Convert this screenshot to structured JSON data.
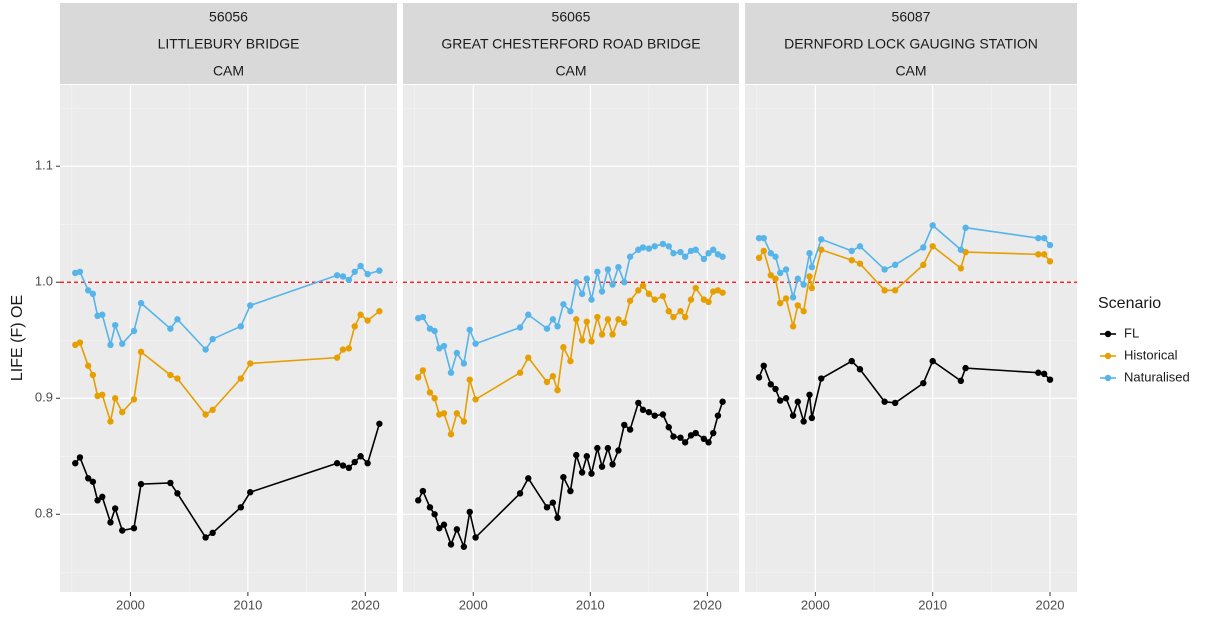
{
  "ylabel": "LIFE (F) OE",
  "legend_title": "Scenario",
  "chart_data": [
    {
      "type": "line",
      "title": [
        "56056",
        "LITTLEBURY BRIDGE",
        "CAM"
      ],
      "x": [
        1995.3,
        1995.7,
        1996.4,
        1996.8,
        1997.2,
        1997.6,
        1998.3,
        1998.7,
        1999.3,
        2000.3,
        2000.9,
        2003.4,
        2004.0,
        2006.4,
        2007.0,
        2009.4,
        2010.2,
        2017.6,
        2018.1,
        2018.6,
        2019.1,
        2019.6,
        2020.2,
        2021.2
      ],
      "series": [
        {
          "name": "FL",
          "color": "#000000",
          "values": [
            0.844,
            0.849,
            0.831,
            0.828,
            0.812,
            0.815,
            0.793,
            0.805,
            0.786,
            0.788,
            0.826,
            0.827,
            0.818,
            0.78,
            0.784,
            0.806,
            0.819,
            0.844,
            0.842,
            0.84,
            0.845,
            0.85,
            0.844,
            0.878
          ]
        },
        {
          "name": "Historical",
          "color": "#E69F00",
          "values": [
            0.946,
            0.948,
            0.928,
            0.92,
            0.902,
            0.903,
            0.88,
            0.9,
            0.888,
            0.899,
            0.94,
            0.92,
            0.917,
            0.886,
            0.89,
            0.917,
            0.93,
            0.935,
            0.942,
            0.943,
            0.962,
            0.972,
            0.967,
            0.975
          ]
        },
        {
          "name": "Naturalised",
          "color": "#56B4E9",
          "values": [
            1.008,
            1.009,
            0.993,
            0.99,
            0.971,
            0.972,
            0.946,
            0.963,
            0.947,
            0.958,
            0.982,
            0.96,
            0.968,
            0.942,
            0.951,
            0.962,
            0.98,
            1.006,
            1.005,
            1.002,
            1.009,
            1.014,
            1.007,
            1.01
          ]
        }
      ],
      "xlim": [
        1994,
        2022.7
      ],
      "ylim": [
        0.733,
        1.17
      ],
      "xticks": [
        2000,
        2010,
        2020
      ],
      "yticks": [
        0.8,
        0.9,
        {
          "value": 1,
          "label": "1.0"
        },
        1.1
      ],
      "hline": 1,
      "hline_color": "#FF0000",
      "grid": true
    },
    {
      "type": "line",
      "title": [
        "56065",
        "GREAT CHESTERFORD ROAD BRIDGE",
        "CAM"
      ],
      "x": [
        1995.3,
        1995.7,
        1996.3,
        1996.7,
        1997.1,
        1997.5,
        1998.1,
        1998.6,
        1999.2,
        1999.7,
        2000.2,
        2004.0,
        2004.7,
        2006.3,
        2006.8,
        2007.2,
        2007.7,
        2008.3,
        2008.8,
        2009.3,
        2009.7,
        2010.1,
        2010.6,
        2011.0,
        2011.5,
        2011.9,
        2012.4,
        2012.9,
        2013.4,
        2014.1,
        2014.5,
        2015.0,
        2015.5,
        2016.2,
        2016.7,
        2017.1,
        2017.7,
        2018.1,
        2018.6,
        2019.0,
        2019.7,
        2020.1,
        2020.5,
        2020.9,
        2021.3
      ],
      "series": [
        {
          "name": "FL",
          "color": "#000000",
          "values": [
            0.812,
            0.82,
            0.806,
            0.8,
            0.788,
            0.791,
            0.774,
            0.787,
            0.772,
            0.802,
            0.78,
            0.818,
            0.831,
            0.806,
            0.81,
            0.797,
            0.832,
            0.82,
            0.851,
            0.836,
            0.85,
            0.835,
            0.857,
            0.841,
            0.857,
            0.843,
            0.855,
            0.877,
            0.873,
            0.896,
            0.89,
            0.888,
            0.885,
            0.886,
            0.875,
            0.867,
            0.866,
            0.862,
            0.868,
            0.87,
            0.865,
            0.862,
            0.87,
            0.885,
            0.897
          ]
        },
        {
          "name": "Historical",
          "color": "#E69F00",
          "values": [
            0.918,
            0.924,
            0.905,
            0.9,
            0.886,
            0.887,
            0.869,
            0.887,
            0.88,
            0.916,
            0.899,
            0.922,
            0.935,
            0.914,
            0.919,
            0.907,
            0.944,
            0.932,
            0.968,
            0.95,
            0.966,
            0.949,
            0.97,
            0.955,
            0.968,
            0.955,
            0.968,
            0.965,
            0.984,
            0.993,
            0.997,
            0.99,
            0.985,
            0.988,
            0.975,
            0.97,
            0.975,
            0.97,
            0.985,
            0.995,
            0.985,
            0.983,
            0.992,
            0.993,
            0.991
          ]
        },
        {
          "name": "Naturalised",
          "color": "#56B4E9",
          "values": [
            0.969,
            0.97,
            0.96,
            0.958,
            0.943,
            0.945,
            0.922,
            0.939,
            0.93,
            0.959,
            0.947,
            0.961,
            0.972,
            0.96,
            0.968,
            0.962,
            0.981,
            0.975,
            1.0,
            0.99,
            1.003,
            0.985,
            1.009,
            0.992,
            1.011,
            0.998,
            1.013,
            1.0,
            1.022,
            1.028,
            1.03,
            1.029,
            1.031,
            1.033,
            1.031,
            1.025,
            1.026,
            1.022,
            1.027,
            1.028,
            1.02,
            1.025,
            1.028,
            1.024,
            1.022
          ]
        }
      ],
      "xlim": [
        1994,
        2022.7
      ],
      "ylim": [
        0.733,
        1.17
      ],
      "xticks": [
        2000,
        2010,
        2020
      ],
      "yticks": [
        0.8,
        0.9,
        {
          "value": 1,
          "label": "1.0"
        },
        1.1
      ],
      "hline": 1,
      "hline_color": "#FF0000",
      "grid": true
    },
    {
      "type": "line",
      "title": [
        "56087",
        "DERNFORD LOCK GAUGING STATION",
        "CAM"
      ],
      "x": [
        1995.2,
        1995.6,
        1996.2,
        1996.6,
        1997.0,
        1997.5,
        1998.1,
        1998.5,
        1999.0,
        1999.5,
        1999.7,
        2000.5,
        2003.1,
        2003.8,
        2005.9,
        2006.8,
        2009.2,
        2010.0,
        2012.4,
        2012.8,
        2019.0,
        2019.5,
        2020.0
      ],
      "series": [
        {
          "name": "FL",
          "color": "#000000",
          "values": [
            0.918,
            0.928,
            0.912,
            0.908,
            0.898,
            0.9,
            0.885,
            0.897,
            0.88,
            0.903,
            0.883,
            0.917,
            0.932,
            0.925,
            0.897,
            0.896,
            0.913,
            0.932,
            0.915,
            0.926,
            0.922,
            0.921,
            0.916
          ]
        },
        {
          "name": "Historical",
          "color": "#E69F00",
          "values": [
            1.021,
            1.027,
            1.006,
            1.003,
            0.982,
            0.986,
            0.962,
            0.98,
            0.975,
            1.005,
            0.995,
            1.028,
            1.019,
            1.016,
            0.993,
            0.993,
            1.015,
            1.031,
            1.012,
            1.026,
            1.024,
            1.024,
            1.018
          ]
        },
        {
          "name": "Naturalised",
          "color": "#56B4E9",
          "values": [
            1.038,
            1.038,
            1.025,
            1.022,
            1.008,
            1.011,
            0.987,
            1.003,
            0.998,
            1.025,
            1.013,
            1.037,
            1.027,
            1.031,
            1.011,
            1.015,
            1.03,
            1.049,
            1.028,
            1.047,
            1.038,
            1.038,
            1.032
          ]
        }
      ],
      "xlim": [
        1994,
        2022.3
      ],
      "ylim": [
        0.733,
        1.17
      ],
      "xticks": [
        2000,
        2010,
        2020
      ],
      "yticks": [
        0.8,
        0.9,
        {
          "value": 1,
          "label": "1.0"
        },
        1.1
      ],
      "hline": 1,
      "hline_color": "#FF0000",
      "grid": true
    }
  ]
}
